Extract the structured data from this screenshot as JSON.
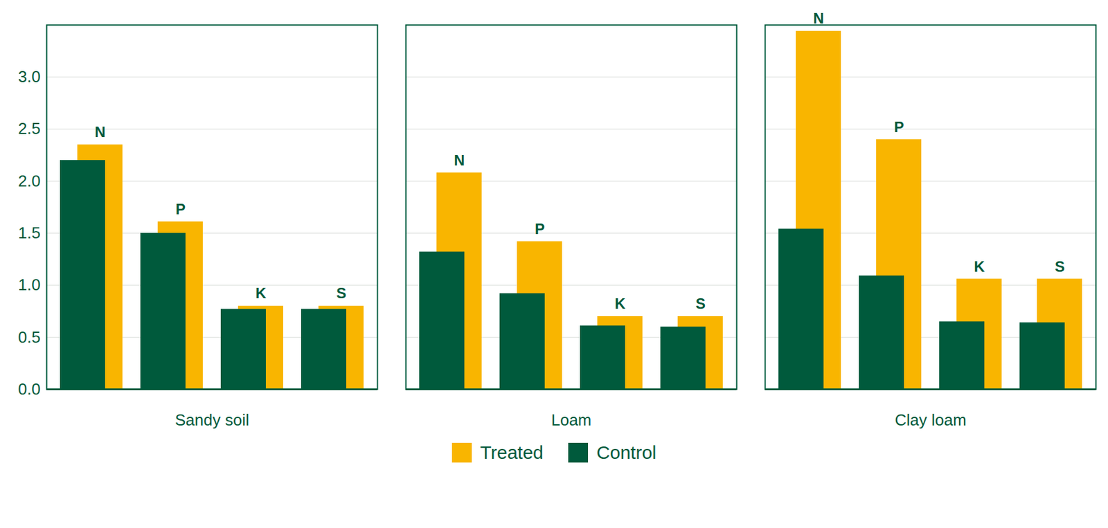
{
  "chart_data": {
    "type": "bar",
    "categories": [
      "Sandy soil",
      "Loam",
      "Clay loam"
    ],
    "subcategories": [
      "N",
      "P",
      "K",
      "S"
    ],
    "series": [
      {
        "name": "Treated",
        "color": "#F9B500",
        "values": [
          [
            2.35,
            1.61,
            0.8,
            0.8
          ],
          [
            2.08,
            1.42,
            0.7,
            0.7
          ],
          [
            3.44,
            2.4,
            1.06,
            1.06
          ]
        ]
      },
      {
        "name": "Control",
        "color": "#005A3C",
        "values": [
          [
            2.2,
            1.5,
            0.77,
            0.77
          ],
          [
            1.32,
            0.92,
            0.61,
            0.6
          ],
          [
            1.54,
            1.09,
            0.65,
            0.64
          ]
        ]
      }
    ],
    "ylim": [
      0,
      3.5
    ],
    "yticks": [
      {
        "value": 0,
        "label": "0.0"
      },
      {
        "value": 0.5,
        "label": "0.5"
      },
      {
        "value": 1,
        "label": "1.0"
      },
      {
        "value": 1.5,
        "label": "1.5"
      },
      {
        "value": 2,
        "label": "2.0"
      },
      {
        "value": 2.5,
        "label": "2.5"
      },
      {
        "value": 3,
        "label": "3.0"
      }
    ],
    "grid": true,
    "legend": "bottom"
  }
}
